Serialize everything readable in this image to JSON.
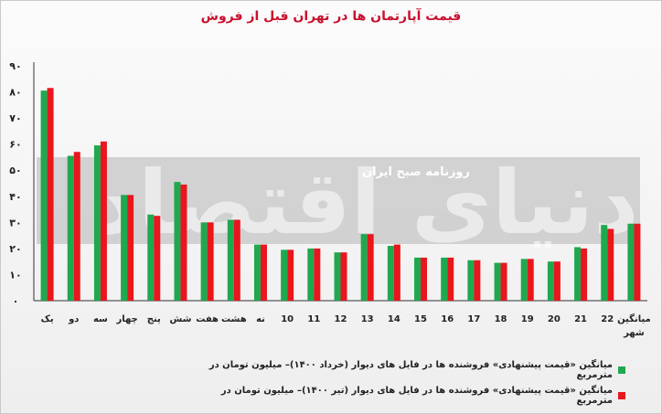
{
  "title": "قیمت آپارتمان ها در تهران قبل از فروش",
  "watermark": {
    "main": "دنیای اقتصاد",
    "sub": "روزنامه صبح ایران"
  },
  "legend": [
    {
      "label": "میانگین «قیمت پیشنهادی» فروشنده ها در فایل های دیوار (خرداد ۱۴۰۰)– میلیون تومان در مترمربع",
      "color": "#1fa84f"
    },
    {
      "label": "میانگین «قیمت پیشنهادی» فروشنده ها در فایل های دیوار (تیر ۱۴۰۰)– میلیون تومان در مترمربع",
      "color": "#e8161e"
    }
  ],
  "chart_data": {
    "type": "bar",
    "title": "قیمت آپارتمان ها در تهران قبل از فروش",
    "categories": [
      "یک",
      "دو",
      "سه",
      "چهار",
      "پنج",
      "شش",
      "هفت",
      "هشت",
      "نه",
      "10",
      "11",
      "12",
      "13",
      "14",
      "15",
      "16",
      "17",
      "18",
      "19",
      "20",
      "21",
      "22",
      "میانگین شهر"
    ],
    "series": [
      {
        "name": "میانگین «قیمت پیشنهادی» فروشنده ها در فایل های دیوار (خرداد ۱۴۰۰)– میلیون تومان در مترمربع",
        "color": "#1fa84f",
        "values": [
          80.5,
          55.5,
          59.5,
          40.5,
          33,
          45.5,
          30,
          31,
          21.5,
          19.5,
          20,
          18.5,
          25.5,
          21,
          16.5,
          16.5,
          15.5,
          14.5,
          16,
          15,
          20.5,
          29,
          29.5
        ]
      },
      {
        "name": "میانگین «قیمت پیشنهادی» فروشنده ها در فایل های دیوار (تیر ۱۴۰۰)– میلیون تومان در مترمربع",
        "color": "#e8161e",
        "values": [
          81.5,
          57,
          61,
          40.5,
          32.5,
          44.5,
          30,
          31,
          21.5,
          19.5,
          20,
          18.5,
          25.5,
          21.5,
          16.5,
          16.5,
          15.5,
          14.5,
          16,
          15,
          20,
          27.5,
          29.5
        ]
      }
    ],
    "yticks": [
      "۰",
      "۱۰",
      "۲۰",
      "۳۰",
      "۴۰",
      "۵۰",
      "۶۰",
      "۷۰",
      "۸۰",
      "۹۰"
    ],
    "ylim": [
      0,
      90
    ],
    "grid": false,
    "legend_position": "bottom"
  }
}
